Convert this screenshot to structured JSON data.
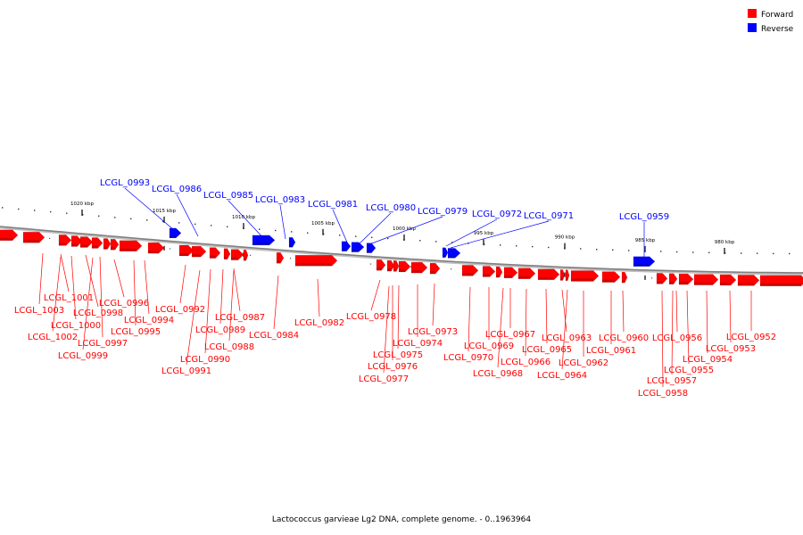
{
  "caption": "Lactococcus garvieae Lg2 DNA, complete genome. - 0..1963964",
  "legend": [
    {
      "label": "Forward",
      "color": "#ff0000"
    },
    {
      "label": "Reverse",
      "color": "#0000ff"
    }
  ],
  "colors": {
    "forward": "#ff0000",
    "reverse": "#0000ff",
    "backbone": "#808080"
  },
  "scale_labels": [
    "1020 kbp",
    "1015 kbp",
    "1010 kbp",
    "1005 kbp",
    "1000 kbp",
    "995 kbp",
    "990 kbp",
    "985 kbp",
    "980 kbp"
  ],
  "reverse_genes": [
    "LCGL_0993",
    "LCGL_0986",
    "LCGL_0985",
    "LCGL_0983",
    "LCGL_0981",
    "LCGL_0980",
    "LCGL_0979",
    "LCGL_0972",
    "LCGL_0971",
    "LCGL_0959"
  ],
  "forward_genes": [
    "LCGL_1001",
    "LCGL_1003",
    "LCGL_0998",
    "LCGL_1000",
    "LCGL_1002",
    "LCGL_0997",
    "LCGL_0999",
    "LCGL_0996",
    "LCGL_0994",
    "LCGL_0995",
    "LCGL_0992",
    "LCGL_0987",
    "LCGL_0989",
    "LCGL_0990",
    "LCGL_0988",
    "LCGL_0991",
    "LCGL_0984",
    "LCGL_0982",
    "LCGL_0978",
    "LCGL_0973",
    "LCGL_0974",
    "LCGL_0975",
    "LCGL_0976",
    "LCGL_0977",
    "LCGL_0970",
    "LCGL_0969",
    "LCGL_0968",
    "LCGL_0967",
    "LCGL_0966",
    "LCGL_0965",
    "LCGL_0963",
    "LCGL_0964",
    "LCGL_0962",
    "LCGL_0960",
    "LCGL_0961",
    "LCGL_0956",
    "LCGL_0955",
    "LCGL_0957",
    "LCGL_0958",
    "LCGL_0954",
    "LCGL_0953",
    "LCGL_0952"
  ]
}
